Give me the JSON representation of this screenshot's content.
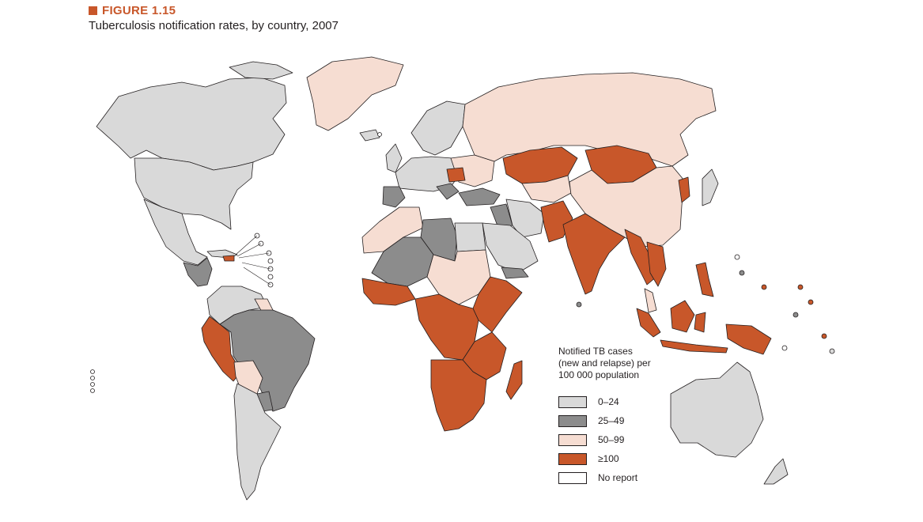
{
  "figure": {
    "label": "FIGURE 1.15",
    "title": "Tuberculosis notification rates, by country, 2007"
  },
  "colors": {
    "accent": "#c8572a",
    "bin_0_24": "#d9d9d9",
    "bin_25_49": "#8c8c8c",
    "bin_50_99": "#f6ddd2",
    "bin_100_plus": "#c8572a",
    "no_report": "#ffffff"
  },
  "legend": {
    "title_lines": [
      "Notified TB cases",
      "(new and relapse) per",
      "100 000 population"
    ],
    "items": [
      {
        "label": "0–24",
        "color": "#d9d9d9"
      },
      {
        "label": "25–49",
        "color": "#8c8c8c"
      },
      {
        "label": "50–99",
        "color": "#f6ddd2"
      },
      {
        "label": "≥100",
        "color": "#c8572a"
      },
      {
        "label": "No report",
        "color": "#ffffff"
      }
    ]
  }
}
